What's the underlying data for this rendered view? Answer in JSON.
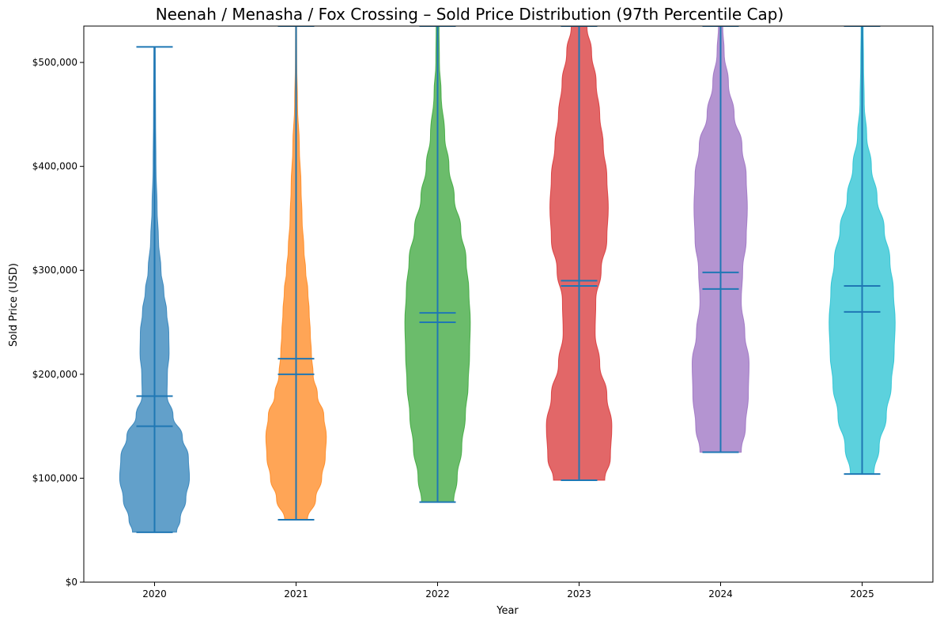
{
  "chart_data": {
    "type": "violin",
    "title": "Neenah / Menasha / Fox Crossing – Sold Price Distribution (97th Percentile Cap)",
    "xlabel": "Year",
    "ylabel": "Sold Price (USD)",
    "ylim": [
      0,
      535000
    ],
    "yticks": [
      0,
      100000,
      200000,
      300000,
      400000,
      500000
    ],
    "ytick_labels": [
      "$0",
      "$100,000",
      "$200,000",
      "$300,000",
      "$400,000",
      "$500,000"
    ],
    "line_color": "#1f77b4",
    "series": [
      {
        "name": "2020",
        "color": "#1f77b4",
        "min": 48000,
        "max": 515000,
        "median": 150000,
        "mean": 179000,
        "density": [
          [
            48000,
            0.62
          ],
          [
            60000,
            0.72
          ],
          [
            80000,
            0.88
          ],
          [
            100000,
            0.98
          ],
          [
            120000,
            0.95
          ],
          [
            140000,
            0.78
          ],
          [
            160000,
            0.52
          ],
          [
            180000,
            0.35
          ],
          [
            200000,
            0.36
          ],
          [
            220000,
            0.41
          ],
          [
            240000,
            0.4
          ],
          [
            260000,
            0.34
          ],
          [
            280000,
            0.26
          ],
          [
            300000,
            0.18
          ],
          [
            330000,
            0.11
          ],
          [
            360000,
            0.07
          ],
          [
            400000,
            0.04
          ],
          [
            450000,
            0.03
          ],
          [
            515000,
            0.02
          ]
        ]
      },
      {
        "name": "2021",
        "color": "#ff7f0e",
        "min": 60000,
        "max": 535000,
        "median": 200000,
        "mean": 215000,
        "density": [
          [
            60000,
            0.32
          ],
          [
            80000,
            0.55
          ],
          [
            100000,
            0.72
          ],
          [
            120000,
            0.82
          ],
          [
            140000,
            0.85
          ],
          [
            160000,
            0.78
          ],
          [
            180000,
            0.6
          ],
          [
            200000,
            0.48
          ],
          [
            220000,
            0.43
          ],
          [
            240000,
            0.4
          ],
          [
            260000,
            0.37
          ],
          [
            280000,
            0.33
          ],
          [
            300000,
            0.27
          ],
          [
            320000,
            0.22
          ],
          [
            350000,
            0.17
          ],
          [
            380000,
            0.14
          ],
          [
            420000,
            0.09
          ],
          [
            460000,
            0.04
          ],
          [
            500000,
            0.02
          ],
          [
            535000,
            0.015
          ]
        ]
      },
      {
        "name": "2022",
        "color": "#2ca02c",
        "min": 77000,
        "max": 535000,
        "median": 250000,
        "mean": 259000,
        "density": [
          [
            77000,
            0.45
          ],
          [
            100000,
            0.55
          ],
          [
            130000,
            0.68
          ],
          [
            160000,
            0.78
          ],
          [
            190000,
            0.86
          ],
          [
            220000,
            0.9
          ],
          [
            250000,
            0.92
          ],
          [
            280000,
            0.88
          ],
          [
            310000,
            0.8
          ],
          [
            340000,
            0.65
          ],
          [
            370000,
            0.47
          ],
          [
            400000,
            0.32
          ],
          [
            430000,
            0.2
          ],
          [
            470000,
            0.1
          ],
          [
            500000,
            0.05
          ],
          [
            535000,
            0.04
          ]
        ]
      },
      {
        "name": "2023",
        "color": "#d62728",
        "min": 98000,
        "max": 535000,
        "median": 285000,
        "mean": 290000,
        "density": [
          [
            98000,
            0.72
          ],
          [
            120000,
            0.88
          ],
          [
            150000,
            0.92
          ],
          [
            180000,
            0.78
          ],
          [
            210000,
            0.58
          ],
          [
            240000,
            0.45
          ],
          [
            270000,
            0.47
          ],
          [
            300000,
            0.62
          ],
          [
            330000,
            0.78
          ],
          [
            360000,
            0.82
          ],
          [
            390000,
            0.78
          ],
          [
            420000,
            0.68
          ],
          [
            450000,
            0.58
          ],
          [
            480000,
            0.48
          ],
          [
            510000,
            0.35
          ],
          [
            535000,
            0.22
          ]
        ]
      },
      {
        "name": "2024",
        "color": "#9467bd",
        "min": 125000,
        "max": 535000,
        "median": 282000,
        "mean": 298000,
        "density": [
          [
            125000,
            0.58
          ],
          [
            150000,
            0.7
          ],
          [
            180000,
            0.78
          ],
          [
            210000,
            0.8
          ],
          [
            240000,
            0.68
          ],
          [
            270000,
            0.58
          ],
          [
            300000,
            0.62
          ],
          [
            330000,
            0.72
          ],
          [
            360000,
            0.75
          ],
          [
            390000,
            0.72
          ],
          [
            420000,
            0.6
          ],
          [
            450000,
            0.38
          ],
          [
            480000,
            0.22
          ],
          [
            510000,
            0.1
          ],
          [
            535000,
            0.06
          ]
        ]
      },
      {
        "name": "2025",
        "color": "#17becf",
        "min": 104000,
        "max": 535000,
        "median": 260000,
        "mean": 285000,
        "density": [
          [
            104000,
            0.33
          ],
          [
            130000,
            0.48
          ],
          [
            160000,
            0.68
          ],
          [
            190000,
            0.82
          ],
          [
            220000,
            0.9
          ],
          [
            250000,
            0.93
          ],
          [
            280000,
            0.88
          ],
          [
            310000,
            0.78
          ],
          [
            340000,
            0.62
          ],
          [
            370000,
            0.42
          ],
          [
            400000,
            0.26
          ],
          [
            430000,
            0.13
          ],
          [
            460000,
            0.06
          ],
          [
            500000,
            0.04
          ],
          [
            535000,
            0.03
          ]
        ]
      }
    ]
  }
}
